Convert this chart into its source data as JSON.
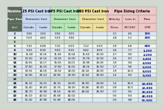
{
  "headers_row1": [
    "Nominal",
    "125 PSI Cast Iron",
    "",
    "175 PSI Cast Iron",
    "",
    "250 PSI Cast Iron",
    "",
    "Pipe Sizing Criteria",
    "",
    ""
  ],
  "headers_row2": [
    "Pipe Size",
    "Diameter (ins)",
    "",
    "Diameter (ins)",
    "",
    "Diameter (ins)",
    "",
    "Velocity",
    "Loss in",
    "Flow"
  ],
  "headers_row3": [
    "(ins)",
    "Outside",
    "Inside",
    "Outside",
    "Inside",
    "Outside",
    "Inside",
    "Ft/sec",
    "PD'/100'",
    "GPM"
  ],
  "rows": [
    [
      "2",
      "3.96",
      "3.06",
      "3.96",
      "3.00",
      "",
      "",
      "3.1",
      "4.5",
      "100"
    ],
    [
      "4",
      "5.00",
      "4.04",
      "5.00",
      "3.96",
      "",
      "",
      "2.8",
      "5.1",
      "200"
    ],
    [
      "5",
      "",
      "",
      "",
      "",
      "",
      "",
      "",
      "",
      ""
    ],
    [
      "6",
      "7.10",
      "6.08",
      "7.10",
      "6.00",
      "7.22",
      "6.00",
      "2.9",
      "6.8",
      "600"
    ],
    [
      "8",
      "9.30",
      "8.18",
      "9.30",
      "8.10",
      "9.42",
      "8.00",
      "2.6",
      "7.7",
      "1,200"
    ],
    [
      "10",
      "11.40",
      "10.16",
      "11.40",
      "10.04",
      "11.60",
      "10.00",
      "2.7",
      "9.0",
      "2,200"
    ],
    [
      "12",
      "13.50",
      "12.14",
      "13.50",
      "12.00",
      "13.78",
      "12.00",
      "2.5",
      "9.7",
      "3,400"
    ],
    [
      "14",
      "15.65",
      "14.17",
      "15.65",
      "14.01",
      "15.98",
      "14.00",
      "1.9",
      "9.4",
      "4,500"
    ],
    [
      "16",
      "17.80",
      "16.20",
      "17.80",
      "16.02",
      "18.16",
      "16.00",
      "1.7",
      "9.6",
      "6,000"
    ],
    [
      "18",
      "19.92",
      "18.18",
      "19.92",
      "18.00",
      "20.34",
      "18.00",
      "1.9",
      "10.0",
      "8,000"
    ],
    [
      "20",
      "22.06",
      "20.22",
      "22.06",
      "20.00",
      "22.54",
      "20.00",
      "1.2",
      "9.2",
      "9,200"
    ],
    [
      "22",
      "",
      "",
      "",
      "",
      "",
      "",
      "",
      "",
      ""
    ],
    [
      "24",
      "26.32",
      "24.22",
      "26.32",
      "24.00",
      "26.90",
      "24.00",
      "1.2",
      "10.0",
      "14,000"
    ],
    [
      "30",
      "32.40",
      "30.00",
      "32.74",
      "30.00",
      "33.46",
      "30.00",
      "0.9",
      "10.0",
      "22,000"
    ],
    [
      "36",
      "38.70",
      "35.98",
      "39.16",
      "36.00",
      "40.04",
      "36.00",
      "0.7",
      "9.5",
      "30,000"
    ],
    [
      "42",
      "45.10",
      "42.02",
      "45.58",
      "42.02",
      "",
      "",
      "0.5",
      "9.3",
      "40,000"
    ],
    [
      "48",
      "51.40",
      "47.98",
      "51.98",
      "48.06",
      "",
      "",
      "0.5",
      "9.8",
      "55,000"
    ]
  ],
  "empty_rows": [
    2,
    11
  ],
  "bg_color": "#d0d8d0",
  "colors": {
    "header_dark": "#5a6a5a",
    "header_text": "#ffffff",
    "col_125": "#c8d8f0",
    "col_175": "#b8e8b8",
    "col_250": "#f0e0a0",
    "col_pipe": "#f0c8c8",
    "row_even": "#dce8f8",
    "row_odd": "#f0f8f0",
    "row_empty": "#c8d8c8",
    "border": "#888888",
    "text": "#000000",
    "flow_text": "#000080"
  }
}
